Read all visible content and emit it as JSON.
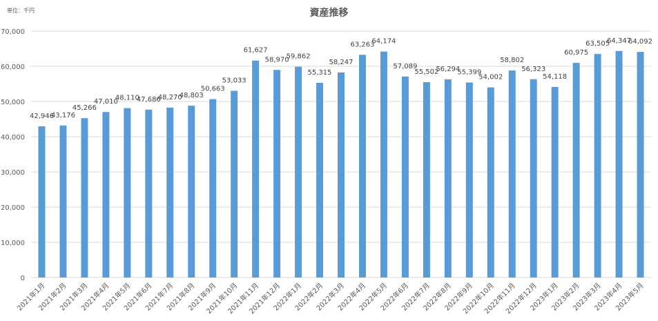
{
  "chart_data": {
    "type": "bar",
    "title": "資産推移",
    "unit_label": "単位：千円",
    "xlabel": "",
    "ylabel": "",
    "ylim": [
      0,
      70000
    ],
    "yticks": [
      0,
      10000,
      20000,
      30000,
      40000,
      50000,
      60000,
      70000
    ],
    "ytick_labels": [
      "0",
      "10,000",
      "20,000",
      "30,000",
      "40,000",
      "50,000",
      "60,000",
      "70,000"
    ],
    "grid": true,
    "legend": null,
    "bar_color": "#5b9bd5",
    "categories": [
      "2021年1月",
      "2021年2月",
      "2021年3月",
      "2021年4月",
      "2021年5月",
      "2021年6月",
      "2021年7月",
      "2021年8月",
      "2021年9月",
      "2021年10月",
      "2021年11月",
      "2021年12月",
      "2022年1月",
      "2022年2月",
      "2022年3月",
      "2022年4月",
      "2022年5月",
      "2022年6月",
      "2022年7月",
      "2022年8月",
      "2022年9月",
      "2022年10月",
      "2022年11月",
      "2022年12月",
      "2023年1月",
      "2023年2月",
      "2023年3月",
      "2023年4月",
      "2023年5月"
    ],
    "values": [
      42946,
      43176,
      45266,
      47010,
      48110,
      47686,
      48270,
      48803,
      50663,
      53033,
      61627,
      58970,
      59862,
      55315,
      58247,
      63263,
      64174,
      57089,
      55502,
      56294,
      55399,
      54002,
      58802,
      56323,
      54118,
      60975,
      63505,
      64347,
      64092
    ],
    "value_labels": [
      "42,946",
      "43,176",
      "45,266",
      "47,010",
      "48,110",
      "47,686",
      "48,270",
      "48,803",
      "50,663",
      "53,033",
      "61,627",
      "58,970",
      "59,862",
      "55,315",
      "58,247",
      "63,263",
      "64,174",
      "57,089",
      "55,502",
      "56,294",
      "55,399",
      "54,002",
      "58,802",
      "56,323",
      "54,118",
      "60,975",
      "63,505",
      "64,347",
      "64,092"
    ]
  }
}
